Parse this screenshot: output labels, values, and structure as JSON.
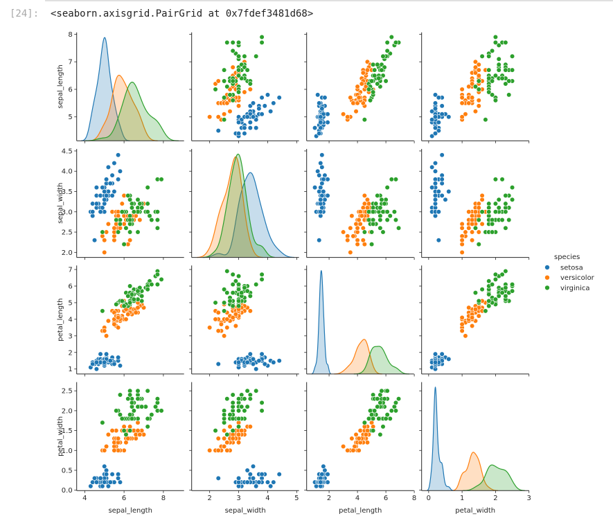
{
  "cell": {
    "prompt": "[24]:",
    "output_text": "<seaborn.axisgrid.PairGrid at 0x7fdef3481d68>"
  },
  "chart_data": {
    "type": "scatter",
    "layout": "pairplot",
    "diag_kind": "kde",
    "grid": false,
    "variables": [
      "sepal_length",
      "sepal_width",
      "petal_length",
      "petal_width"
    ],
    "axis_ranges": {
      "sepal_length": [
        3.59,
        9.05
      ],
      "sepal_width": [
        1.38,
        5.08
      ],
      "petal_length": [
        0.42,
        7.98
      ],
      "petal_width": [
        -0.21,
        3.0
      ]
    },
    "row_ranges": {
      "sepal_length": [
        4.13,
        8.07
      ],
      "sepal_width": [
        1.876,
        4.55
      ],
      "petal_length": [
        0.7,
        7.24
      ],
      "petal_width": [
        -0.01,
        2.72
      ]
    },
    "x_ticks": {
      "sepal_length": [
        "4",
        "6",
        "8"
      ],
      "sepal_width": [
        "2",
        "3",
        "4",
        "5"
      ],
      "petal_length": [
        "2",
        "4",
        "6",
        "8"
      ],
      "petal_width": [
        "0",
        "1",
        "2",
        "3"
      ]
    },
    "y_ticks": {
      "sepal_length": [
        "5",
        "6",
        "7",
        "8"
      ],
      "sepal_width": [
        "2.0",
        "2.5",
        "3.0",
        "3.5",
        "4.0",
        "4.5"
      ],
      "petal_length": [
        "1",
        "2",
        "3",
        "4",
        "5",
        "6",
        "7"
      ],
      "petal_width": [
        "0.0",
        "0.5",
        "1.0",
        "1.5",
        "2.0",
        "2.5"
      ]
    },
    "legend": {
      "title": "species",
      "placement": "right"
    },
    "series": [
      {
        "name": "setosa",
        "color": "#1f77b4",
        "rows": [
          [
            5.1,
            3.5,
            1.4,
            0.2
          ],
          [
            4.9,
            3.0,
            1.4,
            0.2
          ],
          [
            4.7,
            3.2,
            1.3,
            0.2
          ],
          [
            4.6,
            3.1,
            1.5,
            0.2
          ],
          [
            5.0,
            3.6,
            1.4,
            0.2
          ],
          [
            5.4,
            3.9,
            1.7,
            0.4
          ],
          [
            4.6,
            3.4,
            1.4,
            0.3
          ],
          [
            5.0,
            3.4,
            1.5,
            0.2
          ],
          [
            4.4,
            2.9,
            1.4,
            0.2
          ],
          [
            4.9,
            3.1,
            1.5,
            0.1
          ],
          [
            5.4,
            3.7,
            1.5,
            0.2
          ],
          [
            4.8,
            3.4,
            1.6,
            0.2
          ],
          [
            4.8,
            3.0,
            1.4,
            0.1
          ],
          [
            4.3,
            3.0,
            1.1,
            0.1
          ],
          [
            5.8,
            4.0,
            1.2,
            0.2
          ],
          [
            5.7,
            4.4,
            1.5,
            0.4
          ],
          [
            5.4,
            3.9,
            1.3,
            0.4
          ],
          [
            5.1,
            3.5,
            1.4,
            0.3
          ],
          [
            5.7,
            3.8,
            1.7,
            0.3
          ],
          [
            5.1,
            3.8,
            1.5,
            0.3
          ],
          [
            5.4,
            3.4,
            1.7,
            0.2
          ],
          [
            5.1,
            3.7,
            1.5,
            0.4
          ],
          [
            4.6,
            3.6,
            1.0,
            0.2
          ],
          [
            5.1,
            3.3,
            1.7,
            0.5
          ],
          [
            4.8,
            3.4,
            1.9,
            0.2
          ],
          [
            5.0,
            3.0,
            1.6,
            0.2
          ],
          [
            5.0,
            3.4,
            1.6,
            0.4
          ],
          [
            5.2,
            3.5,
            1.5,
            0.2
          ],
          [
            5.2,
            3.4,
            1.4,
            0.2
          ],
          [
            4.7,
            3.2,
            1.6,
            0.2
          ],
          [
            4.8,
            3.1,
            1.6,
            0.2
          ],
          [
            5.4,
            3.4,
            1.5,
            0.4
          ],
          [
            5.2,
            4.1,
            1.5,
            0.1
          ],
          [
            5.5,
            4.2,
            1.4,
            0.2
          ],
          [
            4.9,
            3.1,
            1.5,
            0.2
          ],
          [
            5.0,
            3.2,
            1.2,
            0.2
          ],
          [
            5.5,
            3.5,
            1.3,
            0.2
          ],
          [
            4.9,
            3.6,
            1.4,
            0.1
          ],
          [
            4.4,
            3.0,
            1.3,
            0.2
          ],
          [
            5.1,
            3.4,
            1.5,
            0.2
          ],
          [
            5.0,
            3.5,
            1.3,
            0.3
          ],
          [
            4.5,
            2.3,
            1.3,
            0.3
          ],
          [
            4.4,
            3.2,
            1.3,
            0.2
          ],
          [
            5.0,
            3.5,
            1.6,
            0.6
          ],
          [
            5.1,
            3.8,
            1.9,
            0.4
          ],
          [
            4.8,
            3.0,
            1.4,
            0.3
          ],
          [
            5.1,
            3.8,
            1.6,
            0.2
          ],
          [
            4.6,
            3.2,
            1.4,
            0.2
          ],
          [
            5.3,
            3.7,
            1.5,
            0.2
          ],
          [
            5.0,
            3.3,
            1.4,
            0.2
          ]
        ]
      },
      {
        "name": "versicolor",
        "color": "#ff7f0e",
        "rows": [
          [
            7.0,
            3.2,
            4.7,
            1.4
          ],
          [
            6.4,
            3.2,
            4.5,
            1.5
          ],
          [
            6.9,
            3.1,
            4.9,
            1.5
          ],
          [
            5.5,
            2.3,
            4.0,
            1.3
          ],
          [
            6.5,
            2.8,
            4.6,
            1.5
          ],
          [
            5.7,
            2.8,
            4.5,
            1.3
          ],
          [
            6.3,
            3.3,
            4.7,
            1.6
          ],
          [
            4.9,
            2.4,
            3.3,
            1.0
          ],
          [
            6.6,
            2.9,
            4.6,
            1.3
          ],
          [
            5.2,
            2.7,
            3.9,
            1.4
          ],
          [
            5.0,
            2.0,
            3.5,
            1.0
          ],
          [
            5.9,
            3.0,
            4.2,
            1.5
          ],
          [
            6.0,
            2.2,
            4.0,
            1.0
          ],
          [
            6.1,
            2.9,
            4.7,
            1.4
          ],
          [
            5.6,
            2.9,
            3.6,
            1.3
          ],
          [
            6.7,
            3.1,
            4.4,
            1.4
          ],
          [
            5.6,
            3.0,
            4.5,
            1.5
          ],
          [
            5.8,
            2.7,
            4.1,
            1.0
          ],
          [
            6.2,
            2.2,
            4.5,
            1.5
          ],
          [
            5.6,
            2.5,
            3.9,
            1.1
          ],
          [
            5.9,
            3.2,
            4.8,
            1.8
          ],
          [
            6.1,
            2.8,
            4.0,
            1.3
          ],
          [
            6.3,
            2.5,
            4.9,
            1.5
          ],
          [
            6.1,
            2.8,
            4.7,
            1.2
          ],
          [
            6.4,
            2.9,
            4.3,
            1.3
          ],
          [
            6.6,
            3.0,
            4.4,
            1.4
          ],
          [
            6.8,
            2.8,
            4.8,
            1.4
          ],
          [
            6.7,
            3.0,
            5.0,
            1.7
          ],
          [
            6.0,
            2.9,
            4.5,
            1.5
          ],
          [
            5.7,
            2.6,
            3.5,
            1.0
          ],
          [
            5.5,
            2.4,
            3.8,
            1.1
          ],
          [
            5.5,
            2.4,
            3.7,
            1.0
          ],
          [
            5.8,
            2.7,
            3.9,
            1.2
          ],
          [
            6.0,
            2.7,
            5.1,
            1.6
          ],
          [
            5.4,
            3.0,
            4.5,
            1.5
          ],
          [
            6.0,
            3.4,
            4.5,
            1.6
          ],
          [
            6.7,
            3.1,
            4.7,
            1.5
          ],
          [
            6.3,
            2.3,
            4.4,
            1.3
          ],
          [
            5.6,
            3.0,
            4.1,
            1.3
          ],
          [
            5.5,
            2.5,
            4.0,
            1.3
          ],
          [
            5.5,
            2.6,
            4.4,
            1.2
          ],
          [
            6.1,
            3.0,
            4.6,
            1.4
          ],
          [
            5.8,
            2.6,
            4.0,
            1.2
          ],
          [
            5.0,
            2.3,
            3.3,
            1.0
          ],
          [
            5.6,
            2.7,
            4.2,
            1.3
          ],
          [
            5.7,
            3.0,
            4.2,
            1.2
          ],
          [
            5.7,
            2.9,
            4.2,
            1.3
          ],
          [
            6.2,
            2.9,
            4.3,
            1.3
          ],
          [
            5.1,
            2.5,
            3.0,
            1.1
          ],
          [
            5.7,
            2.8,
            4.1,
            1.3
          ]
        ]
      },
      {
        "name": "virginica",
        "color": "#2ca02c",
        "rows": [
          [
            6.3,
            3.3,
            6.0,
            2.5
          ],
          [
            5.8,
            2.7,
            5.1,
            1.9
          ],
          [
            7.1,
            3.0,
            5.9,
            2.1
          ],
          [
            6.3,
            2.9,
            5.6,
            1.8
          ],
          [
            6.5,
            3.0,
            5.8,
            2.2
          ],
          [
            7.6,
            3.0,
            6.6,
            2.1
          ],
          [
            4.9,
            2.5,
            4.5,
            1.7
          ],
          [
            7.3,
            2.9,
            6.3,
            1.8
          ],
          [
            6.7,
            2.5,
            5.8,
            1.8
          ],
          [
            7.2,
            3.6,
            6.1,
            2.5
          ],
          [
            6.5,
            3.2,
            5.1,
            2.0
          ],
          [
            6.4,
            2.7,
            5.3,
            1.9
          ],
          [
            6.8,
            3.0,
            5.5,
            2.1
          ],
          [
            5.7,
            2.5,
            5.0,
            2.0
          ],
          [
            5.8,
            2.8,
            5.1,
            2.4
          ],
          [
            6.4,
            3.2,
            5.3,
            2.3
          ],
          [
            6.5,
            3.0,
            5.5,
            1.8
          ],
          [
            7.7,
            3.8,
            6.7,
            2.2
          ],
          [
            7.7,
            2.6,
            6.9,
            2.3
          ],
          [
            6.0,
            2.2,
            5.0,
            1.5
          ],
          [
            6.9,
            3.2,
            5.7,
            2.3
          ],
          [
            5.6,
            2.8,
            4.9,
            2.0
          ],
          [
            7.7,
            2.8,
            6.7,
            2.0
          ],
          [
            6.3,
            2.7,
            4.9,
            1.8
          ],
          [
            6.7,
            3.3,
            5.7,
            2.1
          ],
          [
            7.2,
            3.2,
            6.0,
            1.8
          ],
          [
            6.2,
            2.8,
            4.8,
            1.8
          ],
          [
            6.1,
            3.0,
            4.9,
            1.8
          ],
          [
            6.4,
            2.8,
            5.6,
            2.1
          ],
          [
            7.2,
            3.0,
            5.8,
            1.6
          ],
          [
            7.4,
            2.8,
            6.1,
            1.9
          ],
          [
            7.9,
            3.8,
            6.4,
            2.0
          ],
          [
            6.4,
            2.8,
            5.6,
            2.2
          ],
          [
            6.3,
            2.8,
            5.1,
            1.5
          ],
          [
            6.1,
            2.6,
            5.6,
            1.4
          ],
          [
            7.7,
            3.0,
            6.1,
            2.3
          ],
          [
            6.3,
            3.4,
            5.6,
            2.4
          ],
          [
            6.4,
            3.1,
            5.5,
            1.8
          ],
          [
            6.0,
            3.0,
            4.8,
            1.8
          ],
          [
            6.9,
            3.1,
            5.4,
            2.1
          ],
          [
            6.7,
            3.1,
            5.6,
            2.4
          ],
          [
            6.9,
            3.1,
            5.1,
            2.3
          ],
          [
            5.8,
            2.7,
            5.1,
            1.9
          ],
          [
            6.8,
            3.2,
            5.9,
            2.3
          ],
          [
            6.7,
            3.3,
            5.7,
            2.5
          ],
          [
            6.7,
            3.0,
            5.2,
            2.3
          ],
          [
            6.3,
            2.5,
            5.0,
            1.9
          ],
          [
            6.5,
            3.0,
            5.2,
            2.0
          ],
          [
            6.2,
            3.4,
            5.4,
            2.3
          ],
          [
            5.9,
            3.0,
            5.1,
            1.8
          ]
        ]
      }
    ]
  }
}
